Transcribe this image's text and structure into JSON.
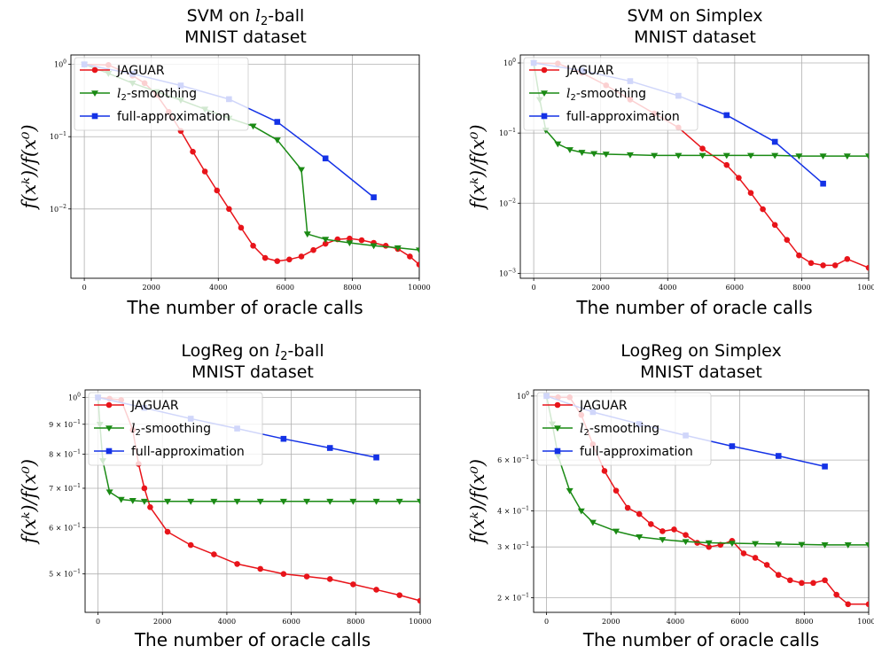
{
  "colors": {
    "JAGUAR": "#e8141a",
    "l2-smoothing": "#1a8a14",
    "full-approximation": "#1432e6"
  },
  "chart_data": [
    {
      "type": "line",
      "title_line1": "SVM on l₂-ball",
      "title_line2": "MNIST dataset",
      "xlabel": "The number of oracle calls",
      "ylabel": "f(xᵏ)/f(x⁰)",
      "yscale": "log",
      "xlim": [
        -400,
        10000
      ],
      "ylim": [
        0.0011,
        1.35
      ],
      "xticks": [
        0,
        2000,
        4000,
        6000,
        8000,
        10000
      ],
      "xtick_labels": [
        "0",
        "2000",
        "4000",
        "6000",
        "8000",
        "10000"
      ],
      "yticks": [
        1,
        0.1,
        0.01
      ],
      "ytick_labels": [
        "10⁰",
        "10⁻¹",
        "10⁻²"
      ],
      "legend": "upper-left",
      "series": [
        {
          "name": "JAGUAR",
          "x": [
            0,
            720,
            1440,
            1800,
            2160,
            2520,
            2880,
            3240,
            3600,
            3960,
            4320,
            4680,
            5040,
            5400,
            5760,
            6120,
            6480,
            6840,
            7200,
            7560,
            7920,
            8280,
            8640,
            9000,
            9360,
            9720,
            10000
          ],
          "y": [
            1.0,
            0.98,
            0.7,
            0.55,
            0.38,
            0.22,
            0.12,
            0.062,
            0.033,
            0.018,
            0.01,
            0.0055,
            0.0031,
            0.0021,
            0.0019,
            0.002,
            0.0022,
            0.0027,
            0.0033,
            0.0038,
            0.0039,
            0.0037,
            0.0034,
            0.0031,
            0.0028,
            0.0022,
            0.0017
          ]
        },
        {
          "name": "l₂-smoothing",
          "x": [
            0,
            720,
            1440,
            2160,
            2880,
            3600,
            4320,
            5040,
            5760,
            6480,
            6660,
            7200,
            7920,
            8640,
            9360,
            10000
          ],
          "y": [
            1.0,
            0.75,
            0.55,
            0.42,
            0.32,
            0.24,
            0.18,
            0.14,
            0.09,
            0.035,
            0.0045,
            0.0038,
            0.0034,
            0.0031,
            0.0029,
            0.0027
          ]
        },
        {
          "name": "full-approximation",
          "x": [
            0,
            1440,
            2880,
            4320,
            5760,
            7200,
            8640
          ],
          "y": [
            1.0,
            0.74,
            0.51,
            0.33,
            0.16,
            0.05,
            0.0145
          ]
        }
      ]
    },
    {
      "type": "line",
      "title_line1": "SVM on Simplex",
      "title_line2": "MNIST dataset",
      "xlabel": "The number of oracle calls",
      "ylabel": "f(xᵏ)/f(x⁰)",
      "yscale": "log",
      "xlim": [
        -400,
        10000
      ],
      "ylim": [
        0.00085,
        1.3
      ],
      "xticks": [
        0,
        2000,
        4000,
        6000,
        8000,
        10000
      ],
      "xtick_labels": [
        "0",
        "2000",
        "4000",
        "6000",
        "8000",
        "10000"
      ],
      "yticks": [
        1,
        0.1,
        0.01,
        0.001
      ],
      "ytick_labels": [
        "10⁰",
        "10⁻¹",
        "10⁻²",
        "10⁻³"
      ],
      "legend": "upper-left",
      "series": [
        {
          "name": "JAGUAR",
          "x": [
            0,
            720,
            1440,
            2160,
            2880,
            3600,
            4320,
            5040,
            5760,
            6120,
            6480,
            6840,
            7200,
            7560,
            7920,
            8280,
            8640,
            9000,
            9360,
            10000
          ],
          "y": [
            1.0,
            0.98,
            0.72,
            0.48,
            0.3,
            0.19,
            0.12,
            0.06,
            0.035,
            0.023,
            0.014,
            0.0082,
            0.0049,
            0.003,
            0.0018,
            0.0014,
            0.0013,
            0.0013,
            0.0016,
            0.0012
          ]
        },
        {
          "name": "l₂-smoothing",
          "x": [
            0,
            180,
            360,
            720,
            1080,
            1440,
            1800,
            2160,
            2880,
            3600,
            4320,
            5040,
            5760,
            6480,
            7200,
            7920,
            8640,
            9360,
            10000
          ],
          "y": [
            1.0,
            0.3,
            0.11,
            0.07,
            0.058,
            0.053,
            0.051,
            0.05,
            0.049,
            0.048,
            0.048,
            0.048,
            0.048,
            0.048,
            0.048,
            0.047,
            0.047,
            0.047,
            0.047
          ]
        },
        {
          "name": "full-approximation",
          "x": [
            0,
            1440,
            2880,
            4320,
            5760,
            7200,
            8640
          ],
          "y": [
            1.0,
            0.78,
            0.55,
            0.34,
            0.18,
            0.075,
            0.019
          ]
        }
      ]
    },
    {
      "type": "line",
      "title_line1": "LogReg on l₂-ball",
      "title_line2": "MNIST dataset",
      "xlabel": "The number of oracle calls",
      "ylabel": "f(xᵏ)/f(x⁰)",
      "yscale": "log",
      "xlim": [
        -400,
        10000
      ],
      "ylim": [
        0.43,
        1.03
      ],
      "xticks": [
        0,
        2000,
        4000,
        6000,
        8000,
        10000
      ],
      "xtick_labels": [
        "0",
        "2000",
        "4000",
        "6000",
        "8000",
        "10000"
      ],
      "yticks": [
        1,
        0.9,
        0.8,
        0.7,
        0.6,
        0.5
      ],
      "ytick_labels": [
        "10⁰",
        "9 × 10⁻¹",
        "8 × 10⁻¹",
        "7 × 10⁻¹",
        "6 × 10⁻¹",
        "5 × 10⁻¹"
      ],
      "legend": "upper-left",
      "series": [
        {
          "name": "JAGUAR",
          "x": [
            0,
            360,
            720,
            1080,
            1260,
            1440,
            1620,
            2160,
            2880,
            3600,
            4320,
            5040,
            5760,
            6480,
            7200,
            7920,
            8640,
            9360,
            10000
          ],
          "y": [
            1.0,
            0.995,
            0.99,
            0.88,
            0.77,
            0.7,
            0.65,
            0.59,
            0.56,
            0.54,
            0.52,
            0.51,
            0.5,
            0.495,
            0.49,
            0.48,
            0.47,
            0.46,
            0.45
          ]
        },
        {
          "name": "l₂-smoothing",
          "x": [
            0,
            60,
            150,
            360,
            720,
            1080,
            1440,
            2160,
            2880,
            3600,
            4320,
            5040,
            5760,
            6480,
            7200,
            7920,
            8640,
            9360,
            10000
          ],
          "y": [
            1.0,
            0.9,
            0.78,
            0.69,
            0.67,
            0.667,
            0.665,
            0.665,
            0.665,
            0.665,
            0.665,
            0.665,
            0.665,
            0.665,
            0.665,
            0.665,
            0.665,
            0.665,
            0.665
          ]
        },
        {
          "name": "full-approximation",
          "x": [
            0,
            1440,
            2880,
            4320,
            5760,
            7200,
            8640
          ],
          "y": [
            1.0,
            0.96,
            0.92,
            0.885,
            0.85,
            0.82,
            0.79
          ]
        }
      ]
    },
    {
      "type": "line",
      "title_line1": "LogReg on Simplex",
      "title_line2": "MNIST dataset",
      "xlabel": "The number of oracle calls",
      "ylabel": "f(xᵏ)/f(x⁰)",
      "yscale": "log",
      "xlim": [
        -400,
        10000
      ],
      "ylim": [
        0.178,
        1.05
      ],
      "xticks": [
        0,
        2000,
        4000,
        6000,
        8000,
        10000
      ],
      "xtick_labels": [
        "0",
        "2000",
        "4000",
        "6000",
        "8000",
        "10000"
      ],
      "yticks": [
        1,
        0.6,
        0.4,
        0.3,
        0.2
      ],
      "ytick_labels": [
        "10⁰",
        "6 × 10⁻¹",
        "4 × 10⁻¹",
        "3 × 10⁻¹",
        "2 × 10⁻¹"
      ],
      "legend": "upper-left",
      "series": [
        {
          "name": "JAGUAR",
          "x": [
            0,
            360,
            720,
            1080,
            1440,
            1800,
            2160,
            2520,
            2880,
            3240,
            3600,
            3960,
            4320,
            4680,
            5040,
            5400,
            5760,
            6120,
            6480,
            6840,
            7200,
            7560,
            7920,
            8280,
            8640,
            9000,
            9360,
            10000
          ],
          "y": [
            1.0,
            0.99,
            0.99,
            0.86,
            0.68,
            0.55,
            0.47,
            0.41,
            0.39,
            0.36,
            0.34,
            0.345,
            0.33,
            0.31,
            0.3,
            0.305,
            0.315,
            0.285,
            0.275,
            0.26,
            0.24,
            0.23,
            0.225,
            0.225,
            0.23,
            0.205,
            0.19,
            0.19
          ]
        },
        {
          "name": "l₂-smoothing",
          "x": [
            0,
            180,
            360,
            720,
            1080,
            1440,
            2160,
            2880,
            3600,
            4320,
            5040,
            5760,
            6480,
            7200,
            7920,
            8640,
            9360,
            10000
          ],
          "y": [
            1.0,
            0.8,
            0.62,
            0.47,
            0.4,
            0.365,
            0.34,
            0.325,
            0.318,
            0.313,
            0.31,
            0.309,
            0.308,
            0.307,
            0.306,
            0.305,
            0.305,
            0.305
          ]
        },
        {
          "name": "full-approximation",
          "x": [
            0,
            1440,
            2880,
            4320,
            5760,
            7200,
            8640
          ],
          "y": [
            1.0,
            0.88,
            0.8,
            0.73,
            0.67,
            0.62,
            0.57
          ]
        }
      ]
    }
  ]
}
